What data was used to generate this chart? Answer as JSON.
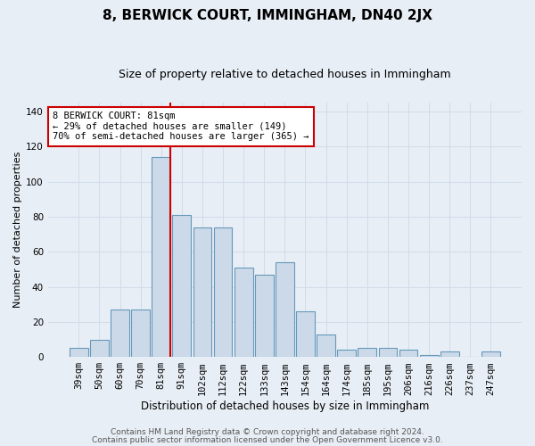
{
  "title": "8, BERWICK COURT, IMMINGHAM, DN40 2JX",
  "subtitle": "Size of property relative to detached houses in Immingham",
  "xlabel": "Distribution of detached houses by size in Immingham",
  "ylabel": "Number of detached properties",
  "categories": [
    "39sqm",
    "50sqm",
    "60sqm",
    "70sqm",
    "81sqm",
    "91sqm",
    "102sqm",
    "112sqm",
    "122sqm",
    "133sqm",
    "143sqm",
    "154sqm",
    "164sqm",
    "174sqm",
    "185sqm",
    "195sqm",
    "206sqm",
    "216sqm",
    "226sqm",
    "237sqm",
    "247sqm"
  ],
  "values": [
    5,
    10,
    27,
    27,
    114,
    81,
    74,
    74,
    51,
    47,
    54,
    26,
    13,
    4,
    5,
    5,
    4,
    1,
    3,
    0,
    3
  ],
  "bar_color": "#ccd9e8",
  "bar_edge_color": "#6699bb",
  "red_line_index": 4,
  "annotation_title": "8 BERWICK COURT: 81sqm",
  "annotation_line1": "← 29% of detached houses are smaller (149)",
  "annotation_line2": "70% of semi-detached houses are larger (365) →",
  "red_line_color": "#cc0000",
  "annotation_box_facecolor": "#ffffff",
  "annotation_box_edgecolor": "#cc0000",
  "grid_color": "#d0dcea",
  "background_color": "#e8eef5",
  "ylim": [
    0,
    145
  ],
  "yticks": [
    0,
    20,
    40,
    60,
    80,
    100,
    120,
    140
  ],
  "title_fontsize": 11,
  "subtitle_fontsize": 9,
  "tick_fontsize": 7.5,
  "ylabel_fontsize": 8,
  "xlabel_fontsize": 8.5,
  "footer1": "Contains HM Land Registry data © Crown copyright and database right 2024.",
  "footer2": "Contains public sector information licensed under the Open Government Licence v3.0.",
  "footer_fontsize": 6.5
}
